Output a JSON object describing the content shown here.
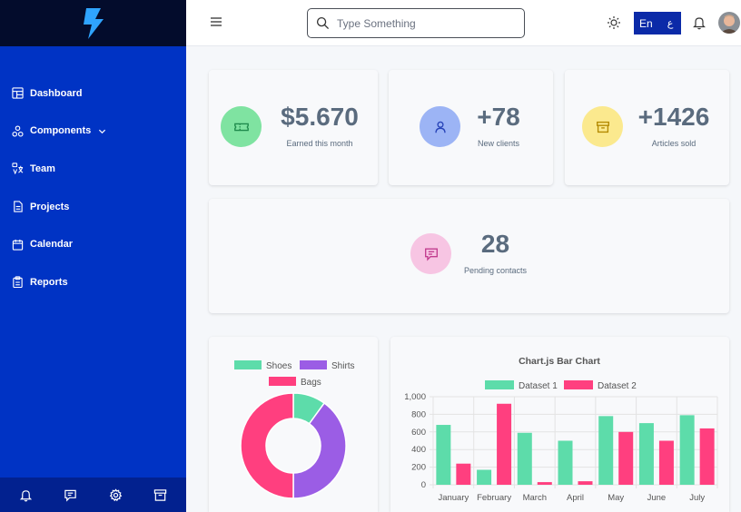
{
  "sidebar": {
    "items": [
      {
        "label": "Dashboard",
        "icon": "dashboard-icon"
      },
      {
        "label": "Components",
        "icon": "components-icon"
      },
      {
        "label": "Team",
        "icon": "team-icon"
      },
      {
        "label": "Projects",
        "icon": "document-icon"
      },
      {
        "label": "Calendar",
        "icon": "calendar-icon"
      },
      {
        "label": "Reports",
        "icon": "clipboard-icon"
      }
    ],
    "footer_icons": [
      "bell-icon",
      "chat-icon",
      "gear-icon",
      "archive-icon"
    ]
  },
  "header": {
    "search_placeholder": "Type Something",
    "language": "En",
    "language_caret": "ع"
  },
  "stats": [
    {
      "value": "$5.670",
      "label": "Earned this month",
      "icon": "ticket-icon",
      "icon_bg": "#7fe3a1",
      "icon_color": "#1f8a4c"
    },
    {
      "value": "+78",
      "label": "New clients",
      "icon": "user-icon",
      "icon_bg": "#9cb4f5",
      "icon_color": "#2743b8"
    },
    {
      "value": "+1426",
      "label": "Articles sold",
      "icon": "archive-icon",
      "icon_bg": "#fbe98e",
      "icon_color": "#b48a00"
    },
    {
      "value": "28",
      "label": "Pending contacts",
      "icon": "chat-icon",
      "icon_bg": "#f7c5e3",
      "icon_color": "#c23d8f"
    }
  ],
  "chart_data": [
    {
      "type": "pie",
      "labels": [
        "Shoes",
        "Shirts",
        "Bags"
      ],
      "values": [
        10,
        40,
        50
      ],
      "colors": [
        "#5ddcaa",
        "#9b5de5",
        "#ff3f7f"
      ],
      "legend": "top"
    },
    {
      "type": "bar",
      "title": "Chart.js Bar Chart",
      "categories": [
        "January",
        "February",
        "March",
        "April",
        "May",
        "June",
        "July"
      ],
      "series": [
        {
          "name": "Dataset 1",
          "values": [
            680,
            170,
            590,
            500,
            780,
            700,
            790
          ],
          "color": "#5ddcaa"
        },
        {
          "name": "Dataset 2",
          "values": [
            240,
            920,
            30,
            40,
            600,
            500,
            640
          ],
          "color": "#ff3f7f"
        }
      ],
      "ylim": [
        0,
        1000
      ],
      "yticks": [
        "0",
        "200",
        "400",
        "600",
        "800",
        "1,000"
      ],
      "grid": true,
      "legend": "top"
    }
  ]
}
